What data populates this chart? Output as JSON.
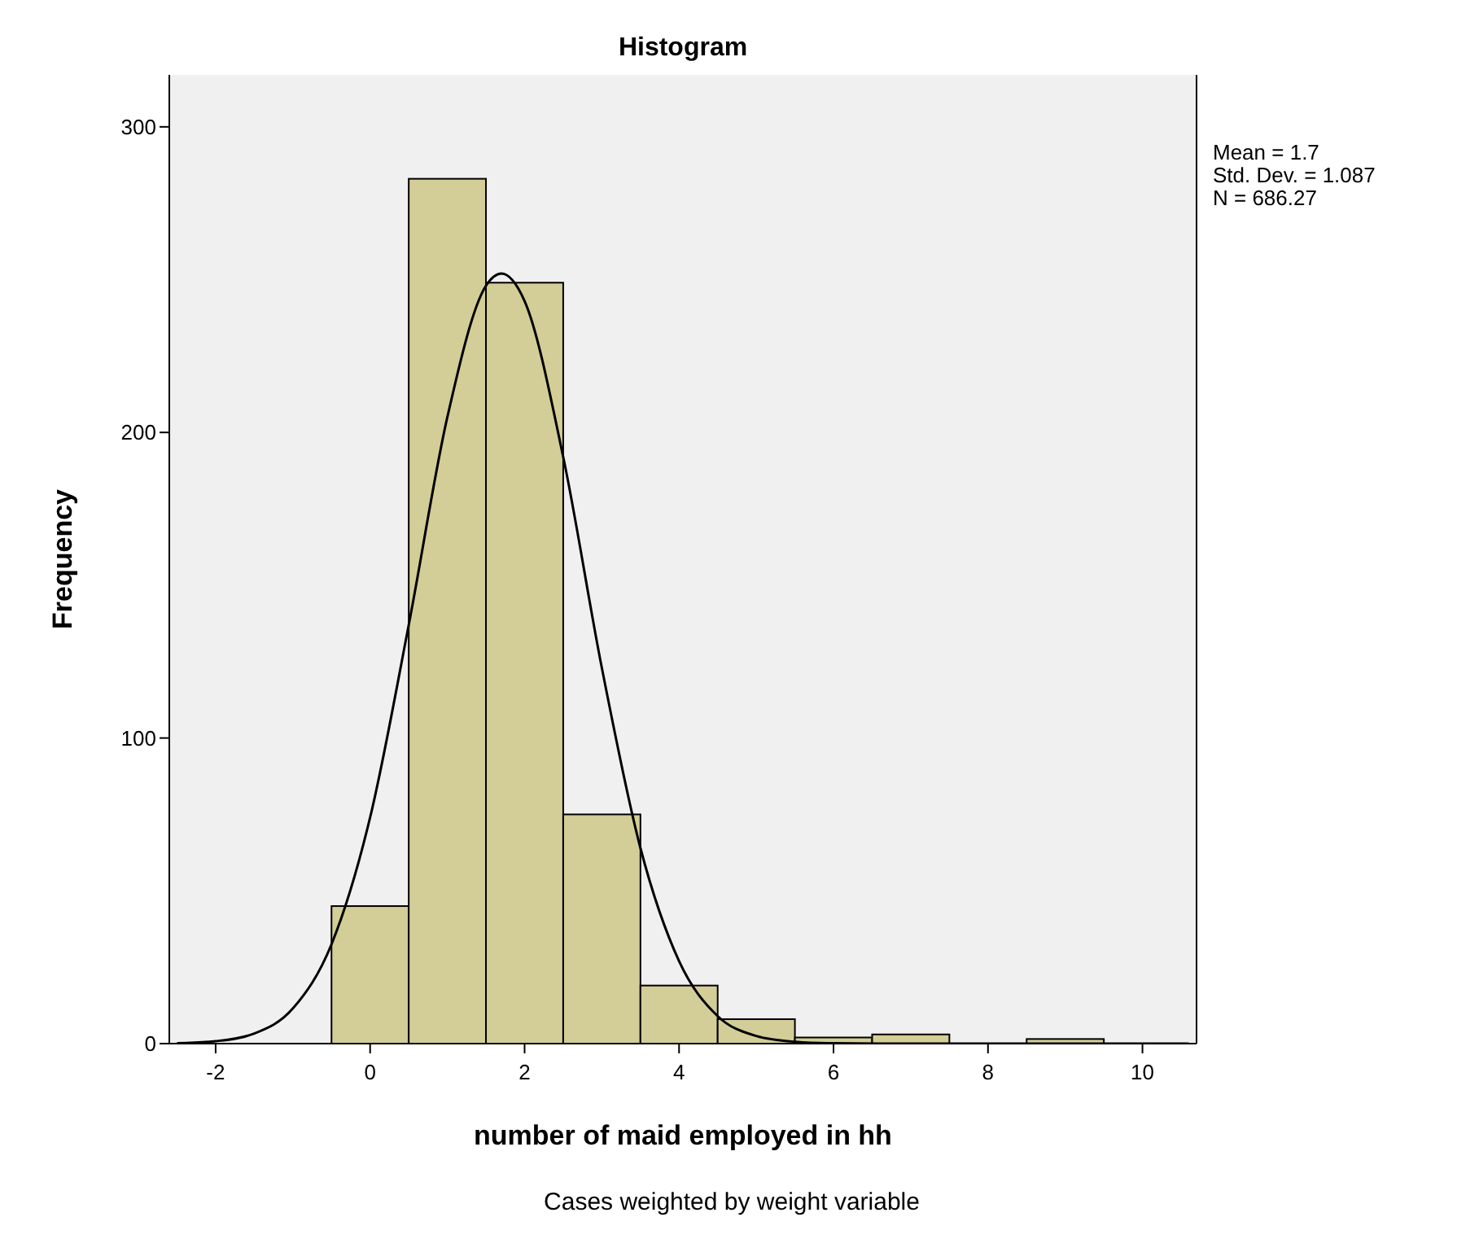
{
  "chart_data": {
    "type": "histogram",
    "title": "Histogram",
    "xlabel": "number of maid employed in hh",
    "ylabel": "Frequency",
    "bins": [
      -0.5,
      0.5,
      1.5,
      2.5,
      3.5,
      4.5,
      5.5,
      6.5,
      7.5,
      8.5,
      9.5
    ],
    "values": [
      45,
      283,
      249,
      75,
      19,
      8,
      2,
      3,
      0,
      1.5
    ],
    "color": "#d3ce97",
    "series": [
      {
        "type": "line",
        "color": "#000000",
        "x": [
          -2.5,
          -2,
          -1.5,
          -1,
          -0.5,
          0,
          0.5,
          1,
          1.5,
          1.7,
          2,
          2.5,
          3,
          3.5,
          4,
          4.5,
          5,
          5.5,
          6,
          7,
          8,
          9,
          10,
          10.6
        ],
        "values": [
          0.1,
          0.8,
          3.3,
          11.5,
          32.5,
          74,
          137,
          205,
          248,
          252,
          243,
          192,
          123,
          64,
          27,
          9,
          2.5,
          0.6,
          0.1,
          0,
          0,
          0,
          0,
          0
        ]
      }
    ],
    "xlim": [
      -2.6,
      10.7
    ],
    "ylim": [
      0,
      317
    ],
    "xticks": [
      -2,
      0,
      2,
      4,
      6,
      8,
      10
    ],
    "yticks": [
      0,
      100,
      200,
      300
    ],
    "grid": false,
    "annotations": [
      "Mean = 1.7",
      "Std. Dev. = 1.087",
      "N = 686.27",
      "Cases weighted by weight variable"
    ]
  }
}
